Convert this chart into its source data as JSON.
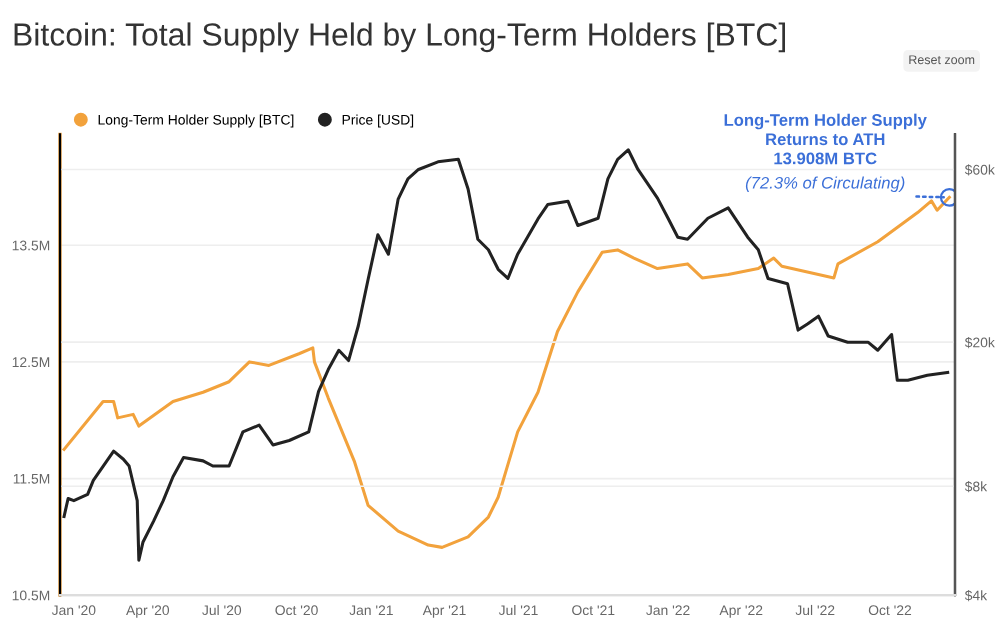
{
  "chart_data": {
    "type": "line",
    "title": "Bitcoin: Total Supply Held by Long-Term Holders [BTC]",
    "xlim": [
      "2019-12-15",
      "2022-12-20"
    ],
    "xticks": [
      {
        "value": "2020-01-01",
        "label": "Jan '20"
      },
      {
        "value": "2020-04-01",
        "label": "Apr '20"
      },
      {
        "value": "2020-07-01",
        "label": "Jul '20"
      },
      {
        "value": "2020-10-01",
        "label": "Oct '20"
      },
      {
        "value": "2021-01-01",
        "label": "Jan '21"
      },
      {
        "value": "2021-04-01",
        "label": "Apr '21"
      },
      {
        "value": "2021-07-01",
        "label": "Jul '21"
      },
      {
        "value": "2021-10-01",
        "label": "Oct '21"
      },
      {
        "value": "2022-01-01",
        "label": "Jan '22"
      },
      {
        "value": "2022-04-01",
        "label": "Apr '22"
      },
      {
        "value": "2022-07-01",
        "label": "Jul '22"
      },
      {
        "value": "2022-10-01",
        "label": "Oct '22"
      }
    ],
    "ylim": [
      10.5,
      14.45
    ],
    "yticks": [
      {
        "value": 10.5,
        "label": "10.5M"
      },
      {
        "value": 11.5,
        "label": "11.5M"
      },
      {
        "value": 12.5,
        "label": "12.5M"
      },
      {
        "value": 13.5,
        "label": "13.5M"
      }
    ],
    "y2lim": [
      4000,
      75000
    ],
    "y2ticks": [
      {
        "value": 4000,
        "label": "$4k"
      },
      {
        "value": 8000,
        "label": "$8k"
      },
      {
        "value": 20000,
        "label": "$20k"
      },
      {
        "value": 60000,
        "label": "$60k"
      }
    ],
    "log": "y2",
    "grid": "y",
    "legend": "top left",
    "marker": "none",
    "line_style": "solid",
    "series": [
      {
        "name": "Long-Term Holder Supply [BTC]",
        "color": "#f2a23c",
        "axis": "y",
        "x": [
          "2019-12-20",
          "2020-02-06",
          "2020-02-19",
          "2020-02-24",
          "2020-03-14",
          "2020-03-21",
          "2020-05-02",
          "2020-06-08",
          "2020-07-10",
          "2020-08-04",
          "2020-08-28",
          "2020-10-04",
          "2020-10-21",
          "2020-10-23",
          "2020-11-09",
          "2020-12-11",
          "2020-12-28",
          "2021-02-03",
          "2021-03-12",
          "2021-03-29",
          "2021-04-30",
          "2021-05-25",
          "2021-06-06",
          "2021-06-30",
          "2021-07-25",
          "2021-08-18",
          "2021-09-12",
          "2021-10-12",
          "2021-10-31",
          "2021-11-20",
          "2021-12-19",
          "2022-01-25",
          "2022-02-12",
          "2022-03-16",
          "2022-04-22",
          "2022-05-11",
          "2022-05-21",
          "2022-07-05",
          "2022-07-24",
          "2022-07-29",
          "2022-09-16",
          "2022-11-04",
          "2022-11-21",
          "2022-11-28",
          "2022-12-13"
        ],
        "values": [
          11.75,
          12.16,
          12.16,
          12.02,
          12.05,
          11.95,
          12.16,
          12.24,
          12.33,
          12.5,
          12.47,
          12.57,
          12.62,
          12.5,
          12.19,
          11.65,
          11.27,
          11.05,
          10.93,
          10.91,
          11.0,
          11.17,
          11.34,
          11.9,
          12.24,
          12.76,
          13.1,
          13.44,
          13.46,
          13.39,
          13.3,
          13.34,
          13.22,
          13.25,
          13.3,
          13.39,
          13.32,
          13.25,
          13.22,
          13.34,
          13.53,
          13.78,
          13.88,
          13.8,
          13.91
        ]
      },
      {
        "name": "Price [USD]",
        "color": "#222222",
        "axis": "y2",
        "x": [
          "2019-12-20",
          "2019-12-25",
          "2020-01-01",
          "2020-01-18",
          "2020-01-25",
          "2020-02-19",
          "2020-03-02",
          "2020-03-09",
          "2020-03-19",
          "2020-03-21",
          "2020-03-26",
          "2020-04-08",
          "2020-04-20",
          "2020-05-02",
          "2020-05-15",
          "2020-06-08",
          "2020-06-20",
          "2020-07-10",
          "2020-07-27",
          "2020-08-16",
          "2020-09-02",
          "2020-09-22",
          "2020-10-16",
          "2020-10-28",
          "2020-11-09",
          "2020-11-22",
          "2020-12-04",
          "2020-12-16",
          "2020-12-28",
          "2021-01-09",
          "2021-01-22",
          "2021-02-03",
          "2021-02-15",
          "2021-02-28",
          "2021-03-24",
          "2021-04-18",
          "2021-04-30",
          "2021-05-12",
          "2021-05-25",
          "2021-06-06",
          "2021-06-18",
          "2021-06-30",
          "2021-07-25",
          "2021-08-06",
          "2021-08-31",
          "2021-09-12",
          "2021-10-07",
          "2021-10-19",
          "2021-10-31",
          "2021-11-13",
          "2021-11-25",
          "2021-12-19",
          "2022-01-01",
          "2022-01-13",
          "2022-01-25",
          "2022-02-19",
          "2022-03-16",
          "2022-04-09",
          "2022-04-22",
          "2022-05-04",
          "2022-05-28",
          "2022-06-10",
          "2022-06-22",
          "2022-07-05",
          "2022-07-17",
          "2022-08-10",
          "2022-09-04",
          "2022-09-16",
          "2022-10-03",
          "2022-10-10",
          "2022-10-23",
          "2022-11-16",
          "2022-12-11"
        ],
        "values": [
          6600,
          7400,
          7300,
          7600,
          8300,
          10000,
          9500,
          9100,
          7300,
          5000,
          5600,
          6400,
          7300,
          8500,
          9600,
          9400,
          9100,
          9100,
          11300,
          11800,
          10400,
          10700,
          11300,
          14600,
          16800,
          19000,
          17800,
          22200,
          29800,
          39600,
          35000,
          49700,
          56500,
          60000,
          63000,
          64000,
          53000,
          38500,
          36000,
          31800,
          30000,
          35000,
          43800,
          48000,
          49000,
          42000,
          44000,
          56500,
          64000,
          68000,
          60000,
          50000,
          44000,
          39000,
          38500,
          44000,
          47000,
          39000,
          36000,
          30000,
          29000,
          21600,
          22500,
          23600,
          20800,
          20000,
          20000,
          19000,
          21000,
          15700,
          15700,
          16200,
          16500
        ]
      }
    ],
    "annotations": [
      "Long-Term Holder Supply\nReturns to ATH\n13.908M BTC",
      "(72.3% of Circulating)",
      "Reset zoom"
    ]
  }
}
